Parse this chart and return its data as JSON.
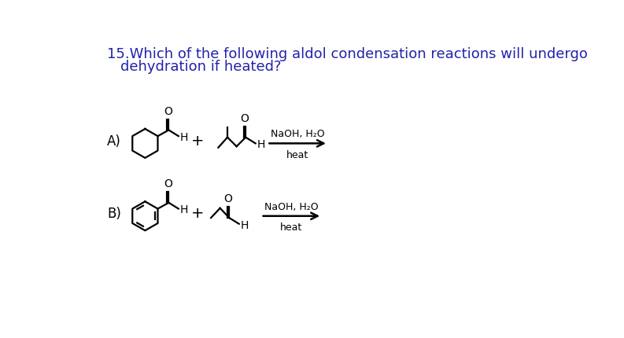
{
  "title_line1": "15.Which of the following aldol condensation reactions will undergo",
  "title_line2": "dehydration if heated?",
  "title_color": "#2222aa",
  "title_fontsize": 13.0,
  "label_A": "A)",
  "label_B": "B)",
  "reagent": "NaOH, H₂O",
  "condition": "heat",
  "background": "#ffffff",
  "line_color": "#000000",
  "fig_width": 7.93,
  "fig_height": 4.31,
  "dpi": 100
}
